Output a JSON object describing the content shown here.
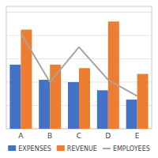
{
  "chart_data": {
    "type": "bar",
    "categories": [
      "A",
      "B",
      "C",
      "D",
      "E"
    ],
    "series": [
      {
        "name": "EXPENSES",
        "color": "#4472C4",
        "values": [
          55,
          42,
          40,
          33,
          25
        ]
      },
      {
        "name": "REVENUE",
        "color": "#ED7D31",
        "values": [
          85,
          55,
          52,
          92,
          47
        ]
      },
      {
        "name": "EMPLOYEES",
        "type": "line",
        "axis": "y2",
        "color": "#A5A5A5",
        "values": [
          82,
          40,
          70,
          42,
          28
        ]
      }
    ],
    "ylim": [
      0,
      105
    ],
    "yticks": [
      0,
      20,
      40,
      60,
      80,
      100
    ],
    "y2lim": [
      0,
      105
    ],
    "grid": true,
    "legend": "bottom",
    "tick_labels": "x"
  }
}
